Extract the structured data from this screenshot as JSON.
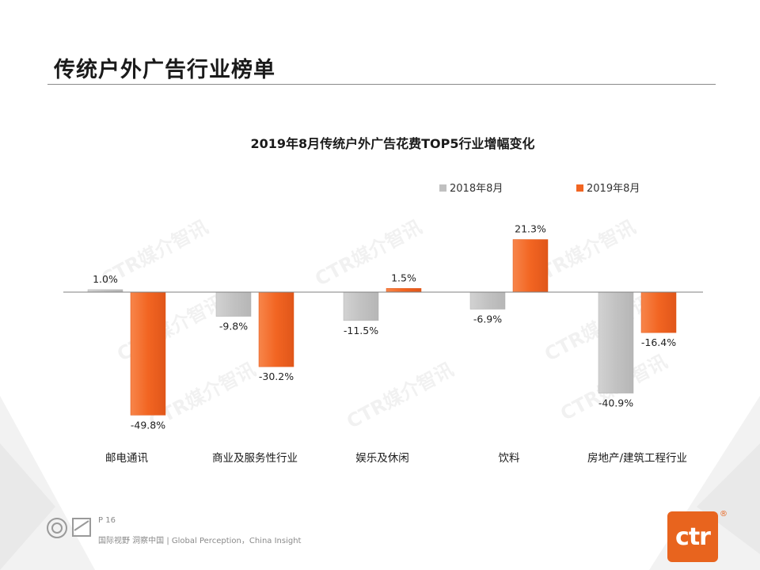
{
  "slide": {
    "title": "传统户外广告行业榜单"
  },
  "chart_data": {
    "type": "bar",
    "title": "2019年8月传统户外广告花费TOP5行业增幅变化",
    "categories": [
      "邮电通讯",
      "商业及服务性行业",
      "娱乐及休闲",
      "饮料",
      "房地产/建筑工程行业"
    ],
    "series": [
      {
        "name": "2018年8月",
        "color": "#c0c0c0",
        "values": [
          1.0,
          -9.8,
          -11.5,
          -6.9,
          -40.9
        ],
        "labels": [
          "1.0%",
          "-9.8%",
          "-11.5%",
          "-6.9%",
          "-40.9%"
        ]
      },
      {
        "name": "2019年8月",
        "color": "#f26522",
        "values": [
          -49.8,
          -30.2,
          1.5,
          21.3,
          -16.4
        ],
        "labels": [
          "-49.8%",
          "-30.2%",
          "1.5%",
          "21.3%",
          "-16.4%"
        ]
      }
    ],
    "ylim": [
      -55,
      25
    ],
    "legend": "top-right",
    "grid": false
  },
  "watermark_text": "CTR媒介智讯",
  "footer": {
    "page": "P 16",
    "tagline": "国际视野  洞察中国 |  Global Perception，China Insight"
  },
  "logo": {
    "text": "ctr",
    "mark": "®"
  }
}
